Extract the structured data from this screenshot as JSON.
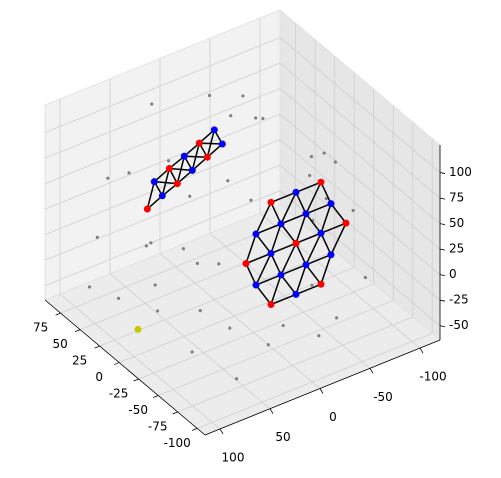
{
  "chart_data": {
    "type": "scatter3d",
    "xlim": [
      -110,
      95
    ],
    "ylim": [
      -120,
      115
    ],
    "zlim": [
      -64,
      127
    ],
    "xticks": [
      75,
      50,
      25,
      0,
      -25,
      -50,
      -75,
      -100
    ],
    "yticks": [
      100,
      50,
      0,
      -50,
      -100
    ],
    "zticks": [
      100,
      75,
      50,
      25,
      0,
      -25,
      -50
    ],
    "grid": true,
    "series": [
      {
        "color": "#808080",
        "x": [
          80,
          70,
          85,
          60,
          40,
          20,
          0,
          -20,
          -40,
          -60,
          -80,
          -90,
          75,
          50,
          30,
          10,
          -10,
          -30,
          -50,
          -70,
          85,
          65,
          45,
          25,
          5,
          -15,
          -35,
          -55,
          -75,
          -95,
          70,
          40,
          10,
          -20,
          -50,
          -80,
          60,
          20,
          -40,
          -70
        ],
        "y": [
          20,
          -30,
          60,
          90,
          -60,
          100,
          -90,
          60,
          -100,
          30,
          -40,
          10,
          -80,
          40,
          -20,
          80,
          -70,
          100,
          -10,
          70,
          -60,
          0,
          70,
          -95,
          30,
          95,
          -50,
          85,
          -20,
          40,
          90,
          -40,
          -100,
          20,
          -80,
          60,
          -10,
          50,
          -70,
          -30
        ],
        "z": [
          100,
          95,
          40,
          10,
          80,
          -20,
          60,
          90,
          -40,
          100,
          -30,
          20,
          50,
          -50,
          105,
          30,
          -55,
          0,
          -45,
          60,
          -10,
          -40,
          75,
          20,
          -50,
          55,
          95,
          -30,
          70,
          -15,
          -45,
          110,
          5,
          -55,
          40,
          -50,
          -55,
          95,
          85,
          -50
        ]
      },
      {
        "color": "#c8c800",
        "x": [
          22
        ],
        "y": [
          79
        ],
        "z": [
          -60
        ]
      }
    ],
    "meshes": [
      {
        "edge_color": "#000000",
        "series": [
          {
            "color": "#ff0000",
            "x": [
              -60,
              -60,
              -60,
              -60,
              -60,
              -60,
              -60
            ],
            "y": [
              10,
              -40,
              35,
              -15,
              -65,
              10,
              -40
            ],
            "z": [
              90,
              90,
              40,
              40,
              40,
              -10,
              -10
            ]
          },
          {
            "color": "#0000ff",
            "x": [
              -60,
              -60,
              -60,
              -60,
              -60,
              -60,
              -60,
              -60,
              -60,
              -60,
              -60,
              -60
            ],
            "y": [
              -15,
              25,
              0,
              -25,
              -50,
              10,
              -40,
              25,
              0,
              -25,
              -50,
              -15
            ],
            "z": [
              90,
              65,
              65,
              65,
              65,
              40,
              40,
              15,
              15,
              15,
              15,
              -10
            ]
          }
        ]
      },
      {
        "edge_color": "#000000",
        "series": [
          {
            "color": "#ff0000",
            "x": [
              60,
              60,
              60,
              60,
              60
            ],
            "y": [
              40,
              10,
              -20,
              18,
              -12
            ],
            "z": [
              18,
              31,
              45,
              49,
              62
            ]
          },
          {
            "color": "#0000ff",
            "x": [
              60,
              60,
              60,
              60,
              60,
              60
            ],
            "y": [
              25,
              -5,
              -35,
              33,
              3,
              -27
            ],
            "z": [
              25,
              38,
              52,
              42,
              55,
              69
            ]
          }
        ]
      }
    ]
  }
}
